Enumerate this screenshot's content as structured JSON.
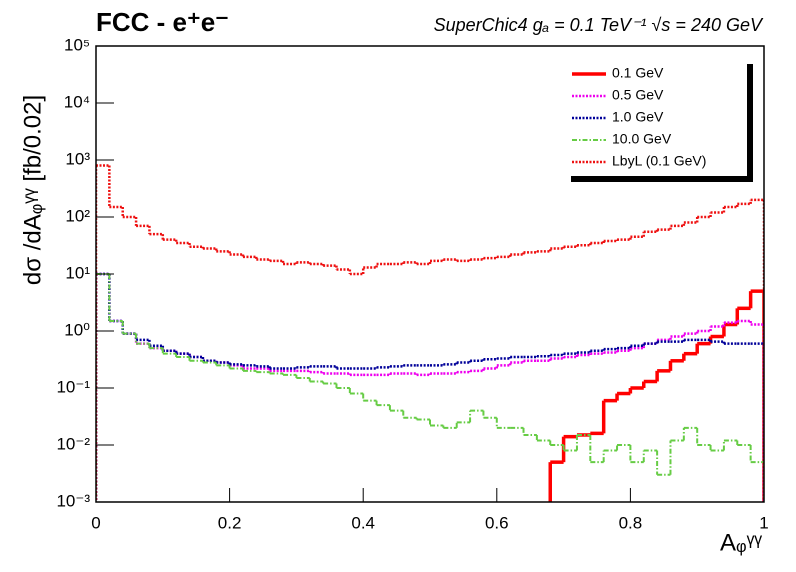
{
  "chart_data": {
    "type": "histogram",
    "title": "FCC - e⁺e⁻",
    "subtitle": "SuperChic4  gₐ = 0.1 TeV⁻¹  √s = 240 GeV",
    "x_label": "Aᵩᵞᵞ",
    "y_label": "dσ /dAᵩᵞᵞ [fb/0.02]",
    "log_y": true,
    "legend": "top-right",
    "bins": [
      0,
      0.02,
      0.04,
      0.06,
      0.08,
      0.1,
      0.12,
      0.14,
      0.16,
      0.18,
      0.2,
      0.22,
      0.24,
      0.26,
      0.28,
      0.3,
      0.32,
      0.34,
      0.36,
      0.38,
      0.4,
      0.42,
      0.44,
      0.46,
      0.48,
      0.5,
      0.52,
      0.54,
      0.56,
      0.58,
      0.6,
      0.62,
      0.64,
      0.66,
      0.68,
      0.7,
      0.72,
      0.74,
      0.76,
      0.78,
      0.8,
      0.82,
      0.84,
      0.86,
      0.88,
      0.9,
      0.92,
      0.94,
      0.96,
      0.98,
      1
    ],
    "xlim": [
      0,
      1
    ],
    "xticks": [
      0,
      0.2,
      0.4,
      0.6,
      0.8,
      1
    ],
    "ylim": [
      0.001,
      100000
    ],
    "yticks": [
      {
        "value": 0.001,
        "label": "10⁻³"
      },
      {
        "value": 0.01,
        "label": "10⁻²"
      },
      {
        "value": 0.1,
        "label": "10⁻¹"
      },
      {
        "value": 1,
        "label": "10⁰"
      },
      {
        "value": 10,
        "label": "10¹"
      },
      {
        "value": 100,
        "label": "10²"
      },
      {
        "value": 1000,
        "label": "10³"
      },
      {
        "value": 10000,
        "label": "10⁴"
      },
      {
        "value": 100000,
        "label": "10⁵"
      }
    ],
    "series": [
      {
        "name": "0.1 GeV",
        "color": "#ff0000",
        "line_style": "solid",
        "values": [
          null,
          null,
          null,
          null,
          null,
          null,
          null,
          null,
          null,
          null,
          null,
          null,
          null,
          null,
          null,
          null,
          null,
          null,
          null,
          null,
          null,
          null,
          null,
          null,
          null,
          null,
          null,
          null,
          null,
          null,
          null,
          null,
          null,
          null,
          0.005,
          0.014,
          0.015,
          0.016,
          0.06,
          0.08,
          0.1,
          0.13,
          0.2,
          0.3,
          0.4,
          0.6,
          0.8,
          1.3,
          2.5,
          5
        ]
      },
      {
        "name": "0.5 GeV",
        "color": "#ee00ee",
        "line_style": "dotted",
        "values": [
          10,
          1.5,
          0.9,
          0.6,
          0.5,
          0.45,
          0.4,
          0.35,
          0.3,
          0.28,
          0.25,
          0.22,
          0.22,
          0.2,
          0.2,
          0.2,
          0.19,
          0.18,
          0.18,
          0.17,
          0.17,
          0.17,
          0.18,
          0.18,
          0.17,
          0.18,
          0.18,
          0.19,
          0.2,
          0.22,
          0.25,
          0.28,
          0.3,
          0.3,
          0.33,
          0.35,
          0.38,
          0.4,
          0.42,
          0.45,
          0.5,
          0.6,
          0.7,
          0.8,
          0.9,
          1.0,
          1.2,
          1.4,
          1.5,
          1.3
        ]
      },
      {
        "name": "1.0 GeV",
        "color": "#000099",
        "line_style": "dotted",
        "values": [
          10,
          1.5,
          0.9,
          0.7,
          0.55,
          0.45,
          0.4,
          0.35,
          0.3,
          0.28,
          0.26,
          0.25,
          0.24,
          0.22,
          0.22,
          0.23,
          0.24,
          0.24,
          0.22,
          0.22,
          0.22,
          0.23,
          0.24,
          0.25,
          0.25,
          0.25,
          0.26,
          0.28,
          0.3,
          0.32,
          0.33,
          0.35,
          0.35,
          0.36,
          0.38,
          0.4,
          0.42,
          0.45,
          0.48,
          0.5,
          0.55,
          0.6,
          0.65,
          0.65,
          0.7,
          0.7,
          0.65,
          0.6,
          0.6,
          0.6
        ]
      },
      {
        "name": "10.0 GeV",
        "color": "#66cc44",
        "line_style": "dashdot",
        "values": [
          10,
          1.5,
          0.9,
          0.6,
          0.5,
          0.4,
          0.35,
          0.3,
          0.28,
          0.25,
          0.22,
          0.2,
          0.19,
          0.18,
          0.17,
          0.15,
          0.13,
          0.12,
          0.1,
          0.08,
          0.06,
          0.05,
          0.04,
          0.03,
          0.028,
          0.022,
          0.02,
          0.025,
          0.04,
          0.03,
          0.02,
          0.02,
          0.015,
          0.012,
          0.01,
          0.008,
          0.015,
          0.005,
          0.008,
          0.01,
          0.005,
          0.008,
          0.003,
          0.012,
          0.02,
          0.01,
          0.008,
          0.012,
          0.01,
          0.005
        ]
      },
      {
        "name": "LbyL (0.1 GeV)",
        "color": "#ee1111",
        "line_style": "dotted",
        "values": [
          800,
          150,
          100,
          70,
          50,
          40,
          35,
          30,
          28,
          25,
          22,
          20,
          18,
          17,
          15,
          16,
          15,
          14,
          12,
          10,
          13,
          15,
          15,
          16,
          15,
          17,
          18,
          17,
          18,
          19,
          20,
          22,
          24,
          25,
          28,
          30,
          32,
          35,
          38,
          40,
          45,
          55,
          60,
          70,
          80,
          100,
          120,
          150,
          170,
          200
        ]
      }
    ]
  }
}
